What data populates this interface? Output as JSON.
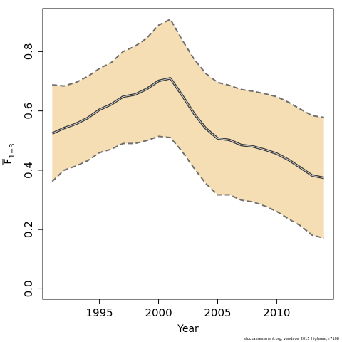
{
  "chart_data": {
    "type": "area",
    "xlabel": "Year",
    "ylabel": "F1-3",
    "ylabel_main": "F",
    "ylabel_sub": "1−3",
    "xlim": [
      1990.2,
      2014.8
    ],
    "ylim": [
      -0.035,
      0.945
    ],
    "xticks": [
      1995,
      2000,
      2005,
      2010
    ],
    "yticks": [
      0.0,
      0.2,
      0.4,
      0.6,
      0.8
    ],
    "ytick_labels": [
      "0.0",
      "0.2",
      "0.4",
      "0.6",
      "0.8"
    ],
    "x": [
      1991,
      1992,
      1993,
      1994,
      1995,
      1996,
      1997,
      1998,
      1999,
      2000,
      2001,
      2002,
      2003,
      2004,
      2005,
      2006,
      2007,
      2008,
      2009,
      2010,
      2011,
      2012,
      2013,
      2014
    ],
    "series": [
      {
        "values": [
          0.524,
          0.542,
          0.556,
          0.576,
          0.604,
          0.622,
          0.648,
          0.655,
          0.674,
          0.701,
          0.71,
          0.652,
          0.591,
          0.541,
          0.507,
          0.502,
          0.485,
          0.48,
          0.469,
          0.456,
          0.435,
          0.409,
          0.382,
          0.374
        ]
      }
    ],
    "band_upper": [
      0.688,
      0.684,
      0.696,
      0.716,
      0.743,
      0.763,
      0.8,
      0.818,
      0.845,
      0.889,
      0.909,
      0.839,
      0.775,
      0.726,
      0.696,
      0.686,
      0.672,
      0.666,
      0.658,
      0.648,
      0.629,
      0.606,
      0.584,
      0.578
    ],
    "band_lower": [
      0.362,
      0.4,
      0.414,
      0.432,
      0.459,
      0.471,
      0.49,
      0.49,
      0.5,
      0.514,
      0.51,
      0.463,
      0.407,
      0.355,
      0.317,
      0.317,
      0.299,
      0.293,
      0.279,
      0.261,
      0.236,
      0.213,
      0.181,
      0.171
    ],
    "colors": {
      "band": "#f5deb3",
      "band_edge": "#6e6e6e",
      "line": "#3a3a3a",
      "line_highlight": "#d9d9d9",
      "axis": "#000000"
    },
    "grid": false
  },
  "footer": {
    "text": "stockassessment.org, vendace_2015_highseal, r7108"
  }
}
